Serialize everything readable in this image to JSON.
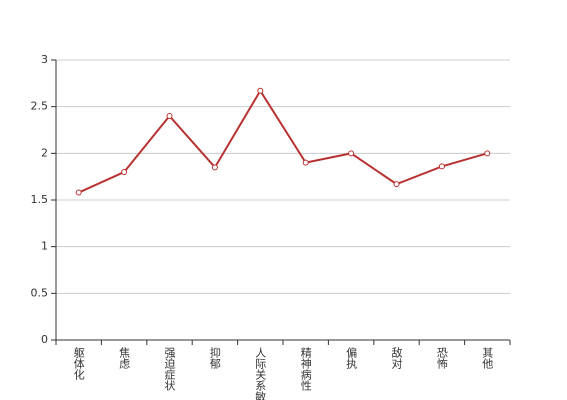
{
  "chart_data": {
    "type": "line",
    "categories": [
      "躯体化",
      "焦虑",
      "强迫症状",
      "抑郁",
      "人际关系敏感",
      "精神病性",
      "偏执",
      "敌对",
      "恐怖",
      "其他"
    ],
    "values": [
      1.58,
      1.8,
      2.4,
      1.85,
      2.67,
      1.9,
      2.0,
      1.67,
      1.86,
      2.0
    ],
    "color": "#b83232",
    "ylim": [
      0,
      3
    ],
    "yticks": [
      0,
      0.5,
      1,
      1.5,
      2,
      2.5,
      3
    ],
    "grid": true
  }
}
